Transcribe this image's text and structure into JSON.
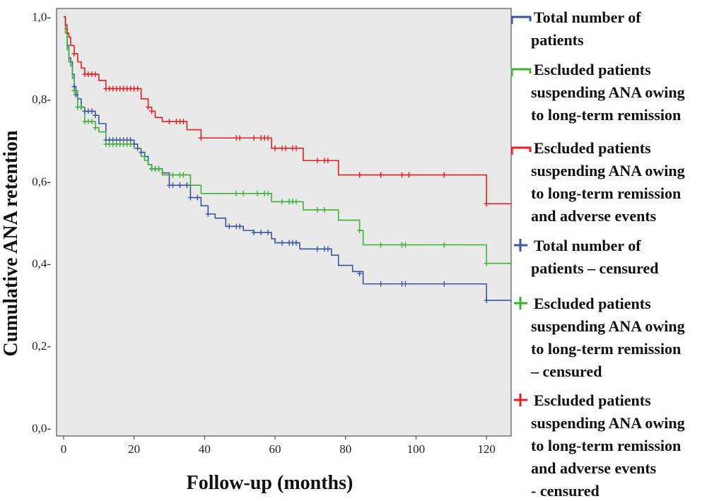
{
  "chart_data": {
    "type": "line",
    "subtype": "kaplan-meier",
    "xlabel": "Follow-up (months)",
    "ylabel": "Cumulative ANA retention",
    "xlim": [
      -2,
      127
    ],
    "ylim": [
      -0.02,
      1.02
    ],
    "x_ticks": [
      0,
      20,
      40,
      60,
      80,
      100,
      120
    ],
    "x_tick_labels": [
      "0",
      "20",
      "40",
      "60",
      "80",
      "100",
      "120"
    ],
    "y_ticks": [
      0.0,
      0.2,
      0.4,
      0.6,
      0.8,
      1.0
    ],
    "y_tick_labels": [
      "0,0-",
      "0,2-",
      "0,4-",
      "0,6-",
      "0,8-",
      "1,0-"
    ],
    "series": [
      {
        "name": "Total number of patients",
        "color": "#3a55a0",
        "steps": [
          [
            0,
            1.0
          ],
          [
            0.5,
            0.97
          ],
          [
            1,
            0.93
          ],
          [
            1.5,
            0.9
          ],
          [
            2,
            0.89
          ],
          [
            2.5,
            0.86
          ],
          [
            3,
            0.83
          ],
          [
            3.5,
            0.81
          ],
          [
            4,
            0.8
          ],
          [
            5,
            0.78
          ],
          [
            6,
            0.77
          ],
          [
            9,
            0.76
          ],
          [
            10,
            0.74
          ],
          [
            12,
            0.7
          ],
          [
            20,
            0.69
          ],
          [
            21,
            0.68
          ],
          [
            22,
            0.67
          ],
          [
            23,
            0.66
          ],
          [
            24,
            0.64
          ],
          [
            25,
            0.63
          ],
          [
            28,
            0.62
          ],
          [
            30,
            0.59
          ],
          [
            36,
            0.56
          ],
          [
            39,
            0.54
          ],
          [
            41,
            0.52
          ],
          [
            43,
            0.51
          ],
          [
            46,
            0.49
          ],
          [
            51,
            0.48
          ],
          [
            54,
            0.475
          ],
          [
            59,
            0.46
          ],
          [
            60,
            0.45
          ],
          [
            67,
            0.435
          ],
          [
            76,
            0.42
          ],
          [
            78,
            0.395
          ],
          [
            82,
            0.38
          ],
          [
            85,
            0.35
          ],
          [
            120,
            0.31
          ],
          [
            127,
            0.31
          ]
        ],
        "censors": [
          [
            3,
            0.83
          ],
          [
            3.5,
            0.81
          ],
          [
            5,
            0.78
          ],
          [
            6,
            0.77
          ],
          [
            7,
            0.77
          ],
          [
            8,
            0.77
          ],
          [
            9,
            0.76
          ],
          [
            12,
            0.7
          ],
          [
            13,
            0.7
          ],
          [
            14,
            0.7
          ],
          [
            15,
            0.7
          ],
          [
            16,
            0.7
          ],
          [
            17,
            0.7
          ],
          [
            18,
            0.7
          ],
          [
            19,
            0.7
          ],
          [
            20,
            0.69
          ],
          [
            21,
            0.68
          ],
          [
            22,
            0.67
          ],
          [
            25,
            0.63
          ],
          [
            26,
            0.63
          ],
          [
            27,
            0.63
          ],
          [
            30,
            0.59
          ],
          [
            31,
            0.59
          ],
          [
            33,
            0.59
          ],
          [
            35,
            0.59
          ],
          [
            36,
            0.56
          ],
          [
            38,
            0.56
          ],
          [
            41,
            0.52
          ],
          [
            47,
            0.49
          ],
          [
            49,
            0.49
          ],
          [
            50,
            0.49
          ],
          [
            54,
            0.475
          ],
          [
            56,
            0.475
          ],
          [
            58,
            0.475
          ],
          [
            62,
            0.45
          ],
          [
            64,
            0.45
          ],
          [
            65,
            0.45
          ],
          [
            66,
            0.45
          ],
          [
            72,
            0.435
          ],
          [
            74,
            0.435
          ],
          [
            75,
            0.435
          ],
          [
            84,
            0.375
          ],
          [
            90,
            0.35
          ],
          [
            96,
            0.35
          ],
          [
            97,
            0.35
          ],
          [
            108,
            0.35
          ],
          [
            120,
            0.31
          ]
        ]
      },
      {
        "name": "Escluded patients suspending ANA owing to long-term remission",
        "color": "#3db33a",
        "steps": [
          [
            0,
            1.0
          ],
          [
            0.5,
            0.96
          ],
          [
            1,
            0.92
          ],
          [
            1.5,
            0.89
          ],
          [
            2,
            0.88
          ],
          [
            2.5,
            0.85
          ],
          [
            3,
            0.82
          ],
          [
            4,
            0.78
          ],
          [
            6,
            0.745
          ],
          [
            9,
            0.73
          ],
          [
            10,
            0.72
          ],
          [
            12,
            0.69
          ],
          [
            20,
            0.68
          ],
          [
            22,
            0.66
          ],
          [
            23,
            0.65
          ],
          [
            24,
            0.64
          ],
          [
            25,
            0.63
          ],
          [
            28,
            0.615
          ],
          [
            36,
            0.59
          ],
          [
            39,
            0.57
          ],
          [
            59,
            0.55
          ],
          [
            68,
            0.53
          ],
          [
            78,
            0.505
          ],
          [
            84,
            0.48
          ],
          [
            85,
            0.445
          ],
          [
            120,
            0.4
          ],
          [
            127,
            0.4
          ]
        ],
        "censors": [
          [
            3,
            0.82
          ],
          [
            4,
            0.78
          ],
          [
            5,
            0.78
          ],
          [
            6,
            0.745
          ],
          [
            7,
            0.745
          ],
          [
            8,
            0.745
          ],
          [
            9,
            0.73
          ],
          [
            12,
            0.69
          ],
          [
            13,
            0.69
          ],
          [
            14,
            0.69
          ],
          [
            15,
            0.69
          ],
          [
            16,
            0.69
          ],
          [
            17,
            0.69
          ],
          [
            18,
            0.69
          ],
          [
            19,
            0.69
          ],
          [
            25,
            0.63
          ],
          [
            26,
            0.63
          ],
          [
            27,
            0.63
          ],
          [
            31,
            0.615
          ],
          [
            33,
            0.615
          ],
          [
            34,
            0.615
          ],
          [
            49,
            0.57
          ],
          [
            51,
            0.57
          ],
          [
            55,
            0.57
          ],
          [
            57,
            0.57
          ],
          [
            58,
            0.57
          ],
          [
            62,
            0.55
          ],
          [
            64,
            0.55
          ],
          [
            65,
            0.55
          ],
          [
            66,
            0.55
          ],
          [
            72,
            0.53
          ],
          [
            74,
            0.53
          ],
          [
            84,
            0.48
          ],
          [
            90,
            0.445
          ],
          [
            96,
            0.445
          ],
          [
            97,
            0.445
          ],
          [
            108,
            0.445
          ],
          [
            120,
            0.4
          ]
        ]
      },
      {
        "name": "Escluded patients suspending ANA owing to long-term remission and adverse events",
        "color": "#e41f1f",
        "steps": [
          [
            0,
            1.0
          ],
          [
            0.5,
            0.98
          ],
          [
            1,
            0.96
          ],
          [
            1.5,
            0.95
          ],
          [
            2,
            0.93
          ],
          [
            3,
            0.91
          ],
          [
            4,
            0.89
          ],
          [
            5,
            0.875
          ],
          [
            6,
            0.86
          ],
          [
            10,
            0.845
          ],
          [
            12,
            0.825
          ],
          [
            22,
            0.8
          ],
          [
            24,
            0.78
          ],
          [
            25,
            0.77
          ],
          [
            26,
            0.755
          ],
          [
            28,
            0.745
          ],
          [
            35,
            0.725
          ],
          [
            39,
            0.705
          ],
          [
            59,
            0.68
          ],
          [
            68,
            0.65
          ],
          [
            78,
            0.615
          ],
          [
            120,
            0.545
          ],
          [
            127,
            0.545
          ]
        ],
        "censors": [
          [
            3,
            0.91
          ],
          [
            6,
            0.86
          ],
          [
            7,
            0.86
          ],
          [
            8,
            0.86
          ],
          [
            9,
            0.86
          ],
          [
            12,
            0.825
          ],
          [
            13,
            0.825
          ],
          [
            14,
            0.825
          ],
          [
            15,
            0.825
          ],
          [
            16,
            0.825
          ],
          [
            17,
            0.825
          ],
          [
            18,
            0.825
          ],
          [
            19,
            0.825
          ],
          [
            20,
            0.825
          ],
          [
            21,
            0.825
          ],
          [
            24,
            0.78
          ],
          [
            25,
            0.77
          ],
          [
            30,
            0.745
          ],
          [
            32,
            0.745
          ],
          [
            33,
            0.745
          ],
          [
            34,
            0.745
          ],
          [
            39,
            0.705
          ],
          [
            49,
            0.705
          ],
          [
            50,
            0.705
          ],
          [
            54,
            0.705
          ],
          [
            56,
            0.705
          ],
          [
            57,
            0.705
          ],
          [
            58,
            0.705
          ],
          [
            60,
            0.68
          ],
          [
            62,
            0.68
          ],
          [
            63,
            0.68
          ],
          [
            65,
            0.68
          ],
          [
            66,
            0.68
          ],
          [
            72,
            0.65
          ],
          [
            74,
            0.65
          ],
          [
            75,
            0.65
          ],
          [
            84,
            0.615
          ],
          [
            90,
            0.615
          ],
          [
            96,
            0.615
          ],
          [
            98,
            0.615
          ],
          [
            108,
            0.615
          ],
          [
            120,
            0.545
          ]
        ]
      }
    ],
    "legend": {
      "position": "right",
      "entries": [
        {
          "marker": "line",
          "color": "#3a55a0",
          "lines": [
            "Total number of",
            "patients"
          ]
        },
        {
          "marker": "line",
          "color": "#3db33a",
          "lines": [
            "Escluded patients",
            "suspending ANA owing",
            "to long-term remission"
          ]
        },
        {
          "marker": "line",
          "color": "#e41f1f",
          "lines": [
            "Escluded patients",
            "suspending ANA owing",
            "to long-term remission",
            "and adverse events"
          ]
        },
        {
          "marker": "plus",
          "color": "#3a55a0",
          "lines": [
            "Total number of",
            "patients – censured"
          ]
        },
        {
          "marker": "plus",
          "color": "#3db33a",
          "lines": [
            "Escluded patients",
            "suspending ANA owing",
            "to long-term remission",
            "– censured"
          ]
        },
        {
          "marker": "plus",
          "color": "#e41f1f",
          "lines": [
            "Escluded patients",
            "suspending ANA owing",
            "to long-term remission",
            "and adverse events",
            "- censured"
          ]
        }
      ]
    }
  },
  "colors": {
    "plot_background": "#e9e9e9",
    "frame": "#333333"
  }
}
